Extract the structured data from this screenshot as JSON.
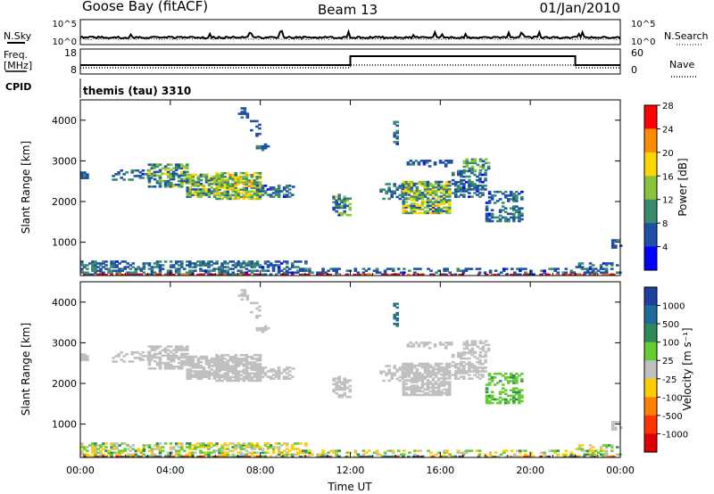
{
  "header": {
    "station": "Goose Bay (fitACF)",
    "beam": "Beam 13",
    "date": "01/Jan/2010"
  },
  "noise_panel": {
    "left_label": "N.Sky",
    "right_label": "N.Search",
    "ticks_left": [
      "10^5",
      "10^0"
    ],
    "ticks_right": [
      "10^5",
      "10^0"
    ]
  },
  "freq_panel": {
    "left_label_top": "Freq.",
    "left_label_bottom": "[MHz]",
    "right_label": "Nave",
    "ticks_left": [
      "18",
      "8"
    ],
    "ticks_right": [
      "60",
      "0"
    ]
  },
  "cpid": {
    "label": "CPID",
    "text": "themis (tau) 3310"
  },
  "chart_data": [
    {
      "type": "heatmap",
      "ylabel": "Slant Range [km]",
      "yticks": [
        "1000",
        "2000",
        "3000",
        "4000"
      ],
      "ylim": [
        180,
        4500
      ],
      "xlim": [
        0,
        24
      ],
      "colorbar": {
        "label": "Power [dB]",
        "ticks": [
          "4",
          "8",
          "12",
          "16",
          "20",
          "24",
          "28"
        ],
        "colors": [
          "#0000ff",
          "#1f4fa8",
          "#3a8c6e",
          "#8ac43c",
          "#ffd700",
          "#ff8c00",
          "#ff0000"
        ]
      }
    },
    {
      "type": "heatmap",
      "ylabel": "Slant Range [km]",
      "yticks": [
        "1000",
        "2000",
        "3000",
        "4000"
      ],
      "ylim": [
        180,
        4500
      ],
      "xlim": [
        0,
        24
      ],
      "colorbar": {
        "label": "Velocity [m s⁻¹]",
        "ticks": [
          "1000",
          "500",
          "100",
          "25",
          "-25",
          "-100",
          "-500",
          "-1000"
        ],
        "colors": [
          "#1e3fa0",
          "#1f6b9c",
          "#2e8b57",
          "#66cc33",
          "#c0c0c0",
          "#ffcc00",
          "#ff8000",
          "#ff3300",
          "#dd0000"
        ]
      }
    }
  ],
  "xaxis": {
    "label": "Time UT",
    "ticks": [
      "00:00",
      "04:00",
      "08:00",
      "12:00",
      "16:00",
      "20:00",
      "00:00"
    ]
  },
  "echo_regions": [
    {
      "t0": 0.0,
      "t1": 0.3,
      "r0": 2560,
      "r1": 2720,
      "density": 0.6,
      "power": [
        4,
        10
      ],
      "vel": [
        -20,
        20
      ]
    },
    {
      "t0": 1.4,
      "t1": 3.1,
      "r0": 2520,
      "r1": 2760,
      "density": 0.4,
      "power": [
        4,
        12
      ],
      "vel": [
        -20,
        25
      ]
    },
    {
      "t0": 3.0,
      "t1": 4.8,
      "r0": 2350,
      "r1": 2900,
      "density": 0.55,
      "power": [
        4,
        18
      ],
      "vel": [
        -20,
        25
      ]
    },
    {
      "t0": 4.7,
      "t1": 6.2,
      "r0": 2100,
      "r1": 2650,
      "density": 0.75,
      "power": [
        6,
        20
      ],
      "vel": [
        -20,
        25
      ]
    },
    {
      "t0": 6.0,
      "t1": 8.0,
      "r0": 2050,
      "r1": 2700,
      "density": 0.8,
      "power": [
        8,
        22
      ],
      "vel": [
        -20,
        25
      ]
    },
    {
      "t0": 7.8,
      "t1": 9.4,
      "r0": 2100,
      "r1": 2400,
      "density": 0.55,
      "power": [
        4,
        12
      ],
      "vel": [
        -20,
        20
      ]
    },
    {
      "t0": 9.4,
      "t1": 9.8,
      "r0": 2300,
      "r1": 2380,
      "density": 0.3,
      "power": [
        4,
        8
      ],
      "vel": [
        -20,
        20
      ]
    },
    {
      "t0": 7.0,
      "t1": 7.4,
      "r0": 4050,
      "r1": 4300,
      "density": 0.6,
      "power": [
        4,
        12
      ],
      "vel": [
        -20,
        20
      ]
    },
    {
      "t0": 7.3,
      "t1": 8.0,
      "r0": 3600,
      "r1": 4000,
      "density": 0.2,
      "power": [
        4,
        8
      ],
      "vel": [
        -20,
        20
      ]
    },
    {
      "t0": 7.8,
      "t1": 8.3,
      "r0": 3250,
      "r1": 3400,
      "density": 0.4,
      "power": [
        4,
        10
      ],
      "vel": [
        -20,
        20
      ]
    },
    {
      "t0": 11.2,
      "t1": 12.0,
      "r0": 1650,
      "r1": 2150,
      "density": 0.55,
      "power": [
        4,
        18
      ],
      "vel": [
        -20,
        20
      ]
    },
    {
      "t0": 13.9,
      "t1": 14.1,
      "r0": 3400,
      "r1": 3950,
      "density": 0.6,
      "power": [
        4,
        12
      ],
      "vel": [
        400,
        900
      ]
    },
    {
      "t0": 13.3,
      "t1": 14.5,
      "r0": 2050,
      "r1": 2450,
      "density": 0.45,
      "power": [
        4,
        12
      ],
      "vel": [
        -20,
        20
      ]
    },
    {
      "t0": 14.3,
      "t1": 16.4,
      "r0": 1700,
      "r1": 2500,
      "density": 0.75,
      "power": [
        6,
        22
      ],
      "vel": [
        -20,
        20
      ]
    },
    {
      "t0": 14.5,
      "t1": 16.5,
      "r0": 2850,
      "r1": 3000,
      "density": 0.35,
      "power": [
        4,
        10
      ],
      "vel": [
        -20,
        25
      ]
    },
    {
      "t0": 16.5,
      "t1": 18.0,
      "r0": 2100,
      "r1": 2750,
      "density": 0.55,
      "power": [
        4,
        12
      ],
      "vel": [
        -20,
        25
      ]
    },
    {
      "t0": 17.0,
      "t1": 18.2,
      "r0": 2750,
      "r1": 3050,
      "density": 0.5,
      "power": [
        8,
        16
      ],
      "vel": [
        -20,
        20
      ]
    },
    {
      "t0": 18.0,
      "t1": 19.6,
      "r0": 1500,
      "r1": 2250,
      "density": 0.45,
      "power": [
        4,
        12
      ],
      "vel": [
        30,
        110
      ]
    },
    {
      "t0": 23.6,
      "t1": 24.0,
      "r0": 850,
      "r1": 1050,
      "density": 0.5,
      "power": [
        4,
        10
      ],
      "vel": [
        -20,
        20
      ]
    },
    {
      "t0": 0.0,
      "t1": 10.0,
      "r0": 190,
      "r1": 520,
      "density": 0.55,
      "power": [
        4,
        12
      ],
      "vel": [
        -100,
        120
      ]
    },
    {
      "t0": 10.0,
      "t1": 22.0,
      "r0": 190,
      "r1": 330,
      "density": 0.3,
      "power": [
        4,
        10
      ],
      "vel": [
        -100,
        120
      ]
    },
    {
      "t0": 22.0,
      "t1": 24.0,
      "r0": 190,
      "r1": 480,
      "density": 0.4,
      "power": [
        4,
        10
      ],
      "vel": [
        -100,
        120
      ]
    },
    {
      "t0": 0.0,
      "t1": 24.0,
      "r0": 180,
      "r1": 200,
      "density": 0.5,
      "power": [
        24,
        30
      ],
      "vel": [
        -1100,
        1100
      ]
    }
  ]
}
